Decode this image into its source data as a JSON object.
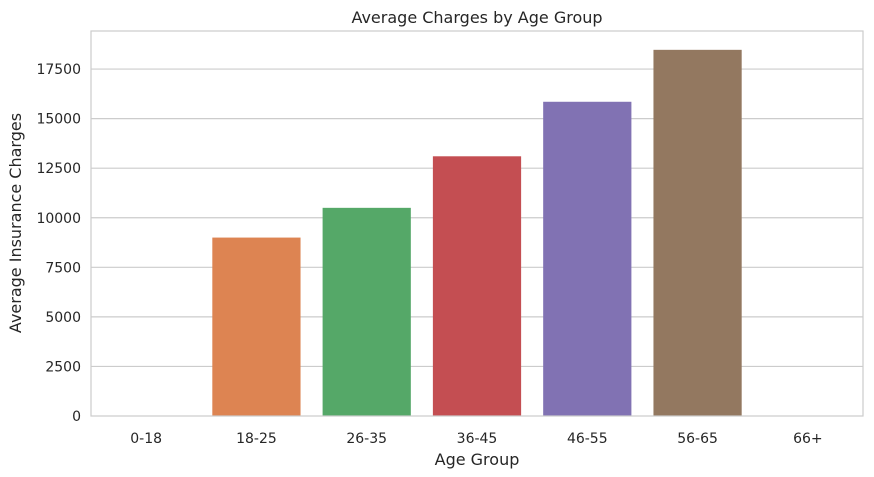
{
  "chart_data": {
    "type": "bar",
    "title": "Average Charges by Age Group",
    "xlabel": "Age Group",
    "ylabel": "Average Insurance Charges",
    "categories": [
      "0-18",
      "18-25",
      "26-35",
      "36-45",
      "46-55",
      "56-65",
      "66+"
    ],
    "values": [
      0,
      9000,
      10500,
      13100,
      15850,
      18470,
      0
    ],
    "colors": [
      "#4c72b0",
      "#dd8452",
      "#55a868",
      "#c44e52",
      "#8172b3",
      "#937860",
      "#da8bc3"
    ],
    "ylim": [
      0,
      19420
    ],
    "yticks": [
      0,
      2500,
      5000,
      7500,
      10000,
      12500,
      15000,
      17500
    ],
    "ytick_labels": [
      "0",
      "2500",
      "5000",
      "7500",
      "10000",
      "12500",
      "15000",
      "17500"
    ],
    "grid": true,
    "grid_axis": "y",
    "legend": "none"
  }
}
